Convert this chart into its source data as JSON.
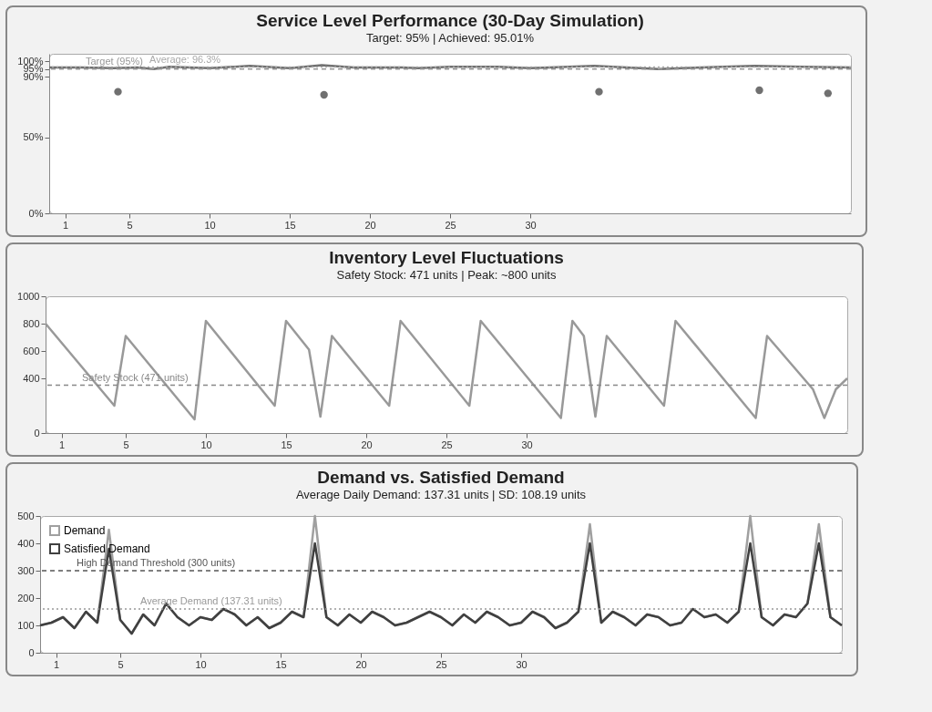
{
  "chart_data": [
    {
      "type": "line",
      "title": "Service Level Performance (30-Day Simulation)",
      "subtitle": "Target: 95% | Achieved: 95.01%",
      "xlim": [
        0,
        50
      ],
      "xticks": [
        1,
        5,
        10,
        15,
        20,
        25,
        30
      ],
      "ylim": [
        0,
        105
      ],
      "yticks": [
        {
          "value": 0,
          "label": "0%"
        },
        {
          "value": 50,
          "label": "50%"
        },
        {
          "value": 90,
          "label": "90%"
        },
        {
          "value": 95,
          "label": "95%"
        },
        {
          "value": 100,
          "label": "100%"
        }
      ],
      "grid": false,
      "legend": false,
      "series": [
        {
          "color": "#707070",
          "x": [
            0,
            2,
            4,
            5.5,
            6.5,
            7.5,
            10,
            12.5,
            15,
            17,
            19,
            22,
            23,
            25,
            28,
            30,
            34,
            38,
            42,
            44,
            47,
            50
          ],
          "values": [
            96,
            96,
            95.5,
            96,
            95,
            96.5,
            95.5,
            97,
            95.5,
            97.5,
            96,
            96,
            95.5,
            96.5,
            96.5,
            95.5,
            97,
            95,
            96.5,
            97,
            96.5,
            96
          ]
        },
        {
          "type": "scatter",
          "marker": "circle",
          "color": "#707070",
          "x": [
            4.29,
            17.14,
            34.29,
            44.29,
            48.57
          ],
          "values": [
            80,
            78,
            80,
            81,
            79
          ]
        }
      ],
      "ref_lines": [
        {
          "axis": "y",
          "value": 95,
          "label": "Target (95%)",
          "color": "#999999",
          "line_style": "dashed"
        },
        {
          "axis": "y",
          "value": 96.3,
          "label": "Average: 96.3%",
          "color": "#aaaaaa",
          "line_style": "dotted"
        }
      ]
    },
    {
      "type": "line",
      "title": "Inventory Level Fluctuations",
      "subtitle": "Safety Stock: 471 units | Peak: ~800 units",
      "xlim": [
        0,
        50
      ],
      "xticks": [
        1,
        5,
        10,
        15,
        20,
        25,
        30
      ],
      "ylim": [
        0,
        1000
      ],
      "yticks": [
        0,
        400,
        600,
        800,
        {
          "value": 1000,
          "label": "1000"
        }
      ],
      "grid": false,
      "legend": false,
      "series": [
        {
          "color": "#999999",
          "x": [
            0,
            4.29,
            5,
            9.29,
            10,
            14.29,
            15,
            16.43,
            17.14,
            17.86,
            21.43,
            22.14,
            26.43,
            27.14,
            32.14,
            32.86,
            33.57,
            34.29,
            35,
            38.57,
            39.29,
            44.29,
            45,
            47.86,
            48.57,
            49.29,
            50
          ],
          "values": [
            800,
            200,
            710,
            100,
            820,
            200,
            820,
            610,
            120,
            710,
            200,
            820,
            200,
            820,
            110,
            820,
            710,
            120,
            710,
            200,
            820,
            110,
            710,
            320,
            110,
            320,
            400
          ]
        }
      ],
      "ref_lines": [
        {
          "axis": "y",
          "value": 350,
          "label": "Safety Stock (471 units)",
          "color": "#888888",
          "line_style": "dashed"
        }
      ]
    },
    {
      "type": "line",
      "title": "Demand vs. Satisfied Demand",
      "subtitle": "Average Daily Demand: 137.31 units | SD: 108.19 units",
      "x": [
        0,
        0.71,
        1.43,
        2.14,
        2.86,
        3.57,
        4.29,
        5,
        5.71,
        6.43,
        7.14,
        7.86,
        8.57,
        9.29,
        10,
        10.71,
        11.43,
        12.14,
        12.86,
        13.57,
        14.29,
        15,
        15.71,
        16.43,
        17.14,
        17.86,
        18.57,
        19.29,
        20,
        20.71,
        21.43,
        22.14,
        22.86,
        23.57,
        24.29,
        25,
        25.71,
        26.43,
        27.14,
        27.86,
        28.57,
        29.29,
        30,
        30.71,
        31.43,
        32.14,
        32.86,
        33.57,
        34.29,
        35,
        35.71,
        36.43,
        37.14,
        37.86,
        38.57,
        39.29,
        40,
        40.71,
        41.43,
        42.14,
        42.86,
        43.57,
        44.29,
        45,
        45.71,
        46.43,
        47.14,
        47.86,
        48.57,
        49.29,
        50
      ],
      "xlim": [
        0,
        50
      ],
      "xticks": [
        1,
        5,
        10,
        15,
        20,
        25,
        30
      ],
      "ylim": [
        0,
        500
      ],
      "yticks": [
        0,
        100,
        200,
        300,
        400,
        500
      ],
      "grid": false,
      "legend": "top left",
      "series": [
        {
          "name": "Demand",
          "color": "#a0a0a0",
          "values": [
            100,
            110,
            130,
            90,
            150,
            110,
            450,
            120,
            70,
            140,
            100,
            180,
            130,
            100,
            130,
            120,
            160,
            140,
            100,
            130,
            90,
            110,
            150,
            130,
            500,
            130,
            100,
            140,
            110,
            150,
            130,
            100,
            110,
            130,
            150,
            130,
            100,
            140,
            110,
            150,
            130,
            100,
            110,
            150,
            130,
            90,
            110,
            150,
            470,
            110,
            150,
            130,
            100,
            140,
            130,
            100,
            110,
            160,
            130,
            140,
            110,
            150,
            500,
            130,
            100,
            140,
            130,
            180,
            470,
            130,
            100
          ]
        },
        {
          "name": "Satisfied Demand",
          "color": "#404040",
          "values": [
            100,
            110,
            130,
            90,
            150,
            110,
            380,
            120,
            70,
            140,
            100,
            180,
            130,
            100,
            130,
            120,
            160,
            140,
            100,
            130,
            90,
            110,
            150,
            130,
            400,
            130,
            100,
            140,
            110,
            150,
            130,
            100,
            110,
            130,
            150,
            130,
            100,
            140,
            110,
            150,
            130,
            100,
            110,
            150,
            130,
            90,
            110,
            150,
            400,
            110,
            150,
            130,
            100,
            140,
            130,
            100,
            110,
            160,
            130,
            140,
            110,
            150,
            400,
            130,
            100,
            140,
            130,
            180,
            400,
            130,
            100
          ]
        }
      ],
      "ref_lines": [
        {
          "axis": "y",
          "value": 300,
          "label": "High Demand Threshold (300 units)",
          "color": "#555555",
          "line_style": "dashed"
        },
        {
          "axis": "y",
          "value": 160,
          "label": "Average Demand (137.31 units)",
          "color": "#999999",
          "line_style": "dotted"
        }
      ]
    }
  ]
}
